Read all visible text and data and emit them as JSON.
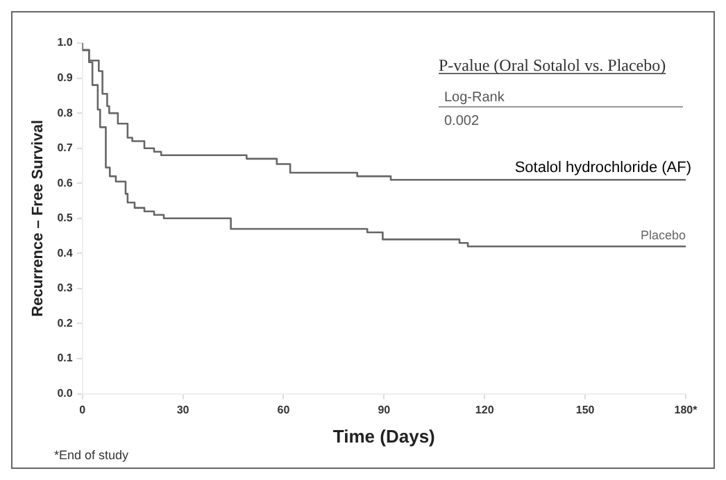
{
  "chart_data": {
    "type": "step",
    "xlabel": "Time (Days)",
    "ylabel": "Recurrence – Free Survival",
    "xlim": [
      0,
      180
    ],
    "xticks": [
      0,
      30,
      60,
      90,
      120,
      150,
      {
        "value": 180,
        "label": "180*"
      }
    ],
    "ylim": [
      0,
      1
    ],
    "yticks": [
      {
        "value": 0,
        "label": "0.0"
      },
      0.1,
      0.2,
      0.3,
      0.4,
      0.5,
      0.6,
      0.7,
      0.8,
      0.9,
      {
        "value": 1,
        "label": "1.0"
      }
    ],
    "grid": false,
    "legend": false,
    "marker": "none",
    "line_style": "solid",
    "series": [
      {
        "name": "Sotalol hydrochloride (AF)",
        "color": "#666666",
        "x": [
          0,
          2,
          4.9,
          6,
          7.4,
          8,
          10.6,
          13.5,
          14.9,
          18.5,
          21.4,
          23.5,
          49,
          58,
          62,
          82,
          92,
          123,
          180
        ],
        "values": [
          1,
          0.98,
          0.95,
          0.92,
          0.855,
          0.82,
          0.8,
          0.77,
          0.73,
          0.72,
          0.7,
          0.69,
          0.68,
          0.67,
          0.655,
          0.63,
          0.62,
          0.61,
          0.61
        ]
      },
      {
        "name": "Placebo",
        "color": "#666666",
        "x": [
          0,
          2,
          3,
          4.6,
          5.3,
          7,
          8.2,
          10,
          12.9,
          13.5,
          15.6,
          18.5,
          21.4,
          24.3,
          44.3,
          85,
          89.6,
          112.5,
          115,
          121,
          180
        ],
        "values": [
          1,
          0.98,
          0.945,
          0.88,
          0.81,
          0.76,
          0.645,
          0.62,
          0.605,
          0.57,
          0.545,
          0.53,
          0.52,
          0.51,
          0.5,
          0.47,
          0.46,
          0.44,
          0.43,
          0.42,
          0.42
        ]
      }
    ],
    "annotations": [
      "P-value (Oral Sotalol vs. Placebo)",
      "Log-Rank",
      "0.002",
      "*End of study"
    ]
  }
}
